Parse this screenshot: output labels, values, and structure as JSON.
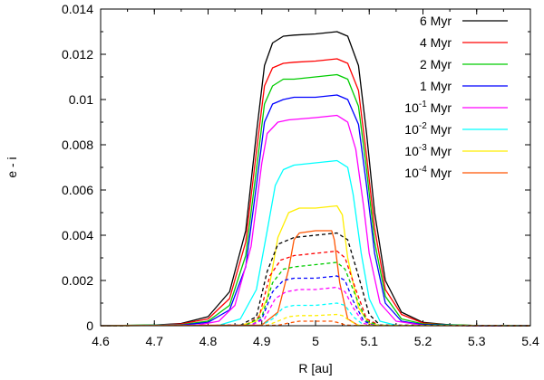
{
  "chart_data": {
    "type": "line",
    "xlabel": "R [au]",
    "ylabel": "e - i",
    "xlim": [
      4.6,
      5.4
    ],
    "ylim": [
      0,
      0.014
    ],
    "grid": false,
    "legend_position": "top-right",
    "xticks": [
      {
        "value": 4.6,
        "label": "4.6"
      },
      {
        "value": 4.7,
        "label": "4.7"
      },
      {
        "value": 4.8,
        "label": "4.8"
      },
      {
        "value": 4.9,
        "label": "4.9"
      },
      {
        "value": 5.0,
        "label": "5"
      },
      {
        "value": 5.1,
        "label": "5.1"
      },
      {
        "value": 5.2,
        "label": "5.2"
      },
      {
        "value": 5.3,
        "label": "5.3"
      },
      {
        "value": 5.4,
        "label": "5.4"
      }
    ],
    "yticks": [
      {
        "value": 0,
        "label": "0"
      },
      {
        "value": 0.002,
        "label": "0.002"
      },
      {
        "value": 0.004,
        "label": "0.004"
      },
      {
        "value": 0.006,
        "label": "0.006"
      },
      {
        "value": 0.008,
        "label": "0.008"
      },
      {
        "value": 0.01,
        "label": "0.01"
      },
      {
        "value": 0.012,
        "label": "0.012"
      },
      {
        "value": 0.014,
        "label": "0.014"
      }
    ],
    "series": [
      {
        "name": "6 Myr",
        "label_base": "6 Myr",
        "color": "#000000",
        "style": "solid",
        "x": [
          4.6,
          4.7,
          4.75,
          4.8,
          4.84,
          4.87,
          4.89,
          4.905,
          4.92,
          4.94,
          4.96,
          5.0,
          5.04,
          5.06,
          5.08,
          5.095,
          5.11,
          5.13,
          5.16,
          5.2,
          5.25,
          5.3,
          5.4
        ],
        "y": [
          0,
          3e-05,
          0.0001,
          0.0004,
          0.0015,
          0.0042,
          0.0085,
          0.0115,
          0.0125,
          0.0128,
          0.01285,
          0.0129,
          0.013,
          0.0128,
          0.0115,
          0.0085,
          0.005,
          0.002,
          0.0006,
          0.00015,
          4e-05,
          1e-05,
          0
        ]
      },
      {
        "name": "4 Myr",
        "label_base": "4 Myr",
        "color": "#ff0000",
        "style": "solid",
        "x": [
          4.6,
          4.7,
          4.75,
          4.8,
          4.84,
          4.87,
          4.89,
          4.905,
          4.92,
          4.94,
          4.96,
          5.0,
          5.04,
          5.06,
          5.08,
          5.095,
          5.11,
          5.13,
          5.16,
          5.2,
          5.25,
          5.3,
          5.4
        ],
        "y": [
          0,
          2e-05,
          8e-05,
          0.0003,
          0.0012,
          0.0037,
          0.0077,
          0.0106,
          0.0114,
          0.0116,
          0.01165,
          0.0117,
          0.0118,
          0.0116,
          0.0104,
          0.0075,
          0.0043,
          0.0016,
          0.0005,
          0.00012,
          3e-05,
          1e-05,
          0
        ]
      },
      {
        "name": "2 Myr",
        "label_base": "2 Myr",
        "color": "#00cc00",
        "style": "solid",
        "x": [
          4.6,
          4.75,
          4.8,
          4.84,
          4.87,
          4.89,
          4.905,
          4.92,
          4.94,
          4.96,
          5.0,
          5.04,
          5.06,
          5.08,
          5.095,
          5.11,
          5.13,
          5.16,
          5.2,
          5.3,
          5.4
        ],
        "y": [
          0,
          5e-05,
          0.0002,
          0.0009,
          0.0031,
          0.0069,
          0.0098,
          0.0106,
          0.0109,
          0.0109,
          0.011,
          0.0111,
          0.0109,
          0.0097,
          0.0069,
          0.0037,
          0.0013,
          0.0003,
          8e-05,
          1e-05,
          0
        ]
      },
      {
        "name": "1 Myr",
        "label_base": "1 Myr",
        "color": "#0000ff",
        "style": "solid",
        "x": [
          4.6,
          4.75,
          4.8,
          4.84,
          4.87,
          4.89,
          4.905,
          4.92,
          4.94,
          4.96,
          5.0,
          5.04,
          5.06,
          5.08,
          5.095,
          5.11,
          5.13,
          5.16,
          5.2,
          5.3,
          5.4
        ],
        "y": [
          0,
          3e-05,
          0.00015,
          0.0007,
          0.0026,
          0.0062,
          0.009,
          0.0098,
          0.01,
          0.0101,
          0.0101,
          0.0102,
          0.01,
          0.0089,
          0.0062,
          0.0032,
          0.001,
          0.0002,
          5e-05,
          0,
          0
        ]
      },
      {
        "name": "10^-1 Myr",
        "label_base": "10",
        "label_exp": "-1",
        "label_unit": " Myr",
        "color": "#ff00ff",
        "style": "solid",
        "x": [
          4.6,
          4.78,
          4.82,
          4.85,
          4.88,
          4.9,
          4.91,
          4.93,
          4.95,
          5.0,
          5.04,
          5.06,
          5.075,
          5.09,
          5.1,
          5.12,
          5.15,
          5.2,
          5.4
        ],
        "y": [
          0,
          3e-05,
          0.0002,
          0.0009,
          0.0035,
          0.0072,
          0.0085,
          0.009,
          0.0091,
          0.0092,
          0.0093,
          0.009,
          0.0078,
          0.0052,
          0.0032,
          0.001,
          0.0002,
          2e-05,
          0
        ]
      },
      {
        "name": "10^-2 Myr",
        "label_base": "10",
        "label_exp": "-2",
        "label_unit": " Myr",
        "color": "#00ffff",
        "style": "solid",
        "x": [
          4.6,
          4.82,
          4.86,
          4.89,
          4.91,
          4.925,
          4.94,
          4.96,
          5.0,
          5.04,
          5.06,
          5.07,
          5.085,
          5.1,
          5.12,
          5.15,
          5.4
        ],
        "y": [
          0,
          2e-05,
          0.0003,
          0.0016,
          0.0042,
          0.0062,
          0.0069,
          0.0071,
          0.0072,
          0.0073,
          0.007,
          0.0058,
          0.0032,
          0.0012,
          0.0002,
          2e-05,
          0
        ]
      },
      {
        "name": "10^-3 Myr",
        "label_base": "10",
        "label_exp": "-3",
        "label_unit": " Myr",
        "color": "#ffee00",
        "style": "solid",
        "x": [
          4.6,
          4.86,
          4.89,
          4.91,
          4.93,
          4.95,
          4.97,
          5.0,
          5.04,
          5.05,
          5.06,
          5.08,
          5.1,
          5.12,
          5.4
        ],
        "y": [
          0,
          2e-05,
          0.0002,
          0.0012,
          0.0039,
          0.005,
          0.0052,
          0.0052,
          0.0053,
          0.0049,
          0.003,
          0.0008,
          0.0001,
          1e-05,
          0
        ]
      },
      {
        "name": "10^-4 Myr",
        "label_base": "10",
        "label_exp": "-4",
        "label_unit": " Myr",
        "color": "#ff5500",
        "style": "solid",
        "x": [
          4.6,
          4.9,
          4.93,
          4.95,
          4.96,
          4.97,
          5.0,
          5.03,
          5.035,
          5.045,
          5.06,
          5.08,
          5.4
        ],
        "y": [
          0,
          3e-05,
          0.0006,
          0.0025,
          0.0038,
          0.0041,
          0.0042,
          0.0042,
          0.0038,
          0.0019,
          0.0003,
          1e-05,
          0
        ]
      },
      {
        "name": "6 Myr (dashed)",
        "color": "#000000",
        "style": "dashed",
        "x": [
          4.6,
          4.86,
          4.89,
          4.91,
          4.93,
          4.96,
          5.0,
          5.04,
          5.06,
          5.08,
          5.1,
          5.12,
          5.4
        ],
        "y": [
          0,
          2e-05,
          0.0004,
          0.0024,
          0.0036,
          0.0039,
          0.004,
          0.0041,
          0.0038,
          0.0022,
          0.0005,
          3e-05,
          0
        ]
      },
      {
        "name": "4 Myr (dashed)",
        "color": "#ff0000",
        "style": "dashed",
        "x": [
          4.6,
          4.87,
          4.895,
          4.915,
          4.935,
          4.96,
          5.0,
          5.04,
          5.055,
          5.075,
          5.095,
          5.12,
          5.4
        ],
        "y": [
          0,
          2e-05,
          0.0004,
          0.0022,
          0.0029,
          0.0031,
          0.0032,
          0.0033,
          0.003,
          0.0016,
          0.0003,
          1e-05,
          0
        ]
      },
      {
        "name": "2 Myr (dashed)",
        "color": "#00cc00",
        "style": "dashed",
        "x": [
          4.6,
          4.87,
          4.9,
          4.92,
          4.94,
          4.96,
          5.0,
          5.04,
          5.055,
          5.075,
          5.095,
          5.12,
          5.4
        ],
        "y": [
          0,
          2e-05,
          0.0004,
          0.0019,
          0.0025,
          0.0026,
          0.0027,
          0.0028,
          0.0025,
          0.0013,
          0.0002,
          1e-05,
          0
        ]
      },
      {
        "name": "1 Myr (dashed)",
        "color": "#0000ff",
        "style": "dashed",
        "x": [
          4.6,
          4.88,
          4.9,
          4.92,
          4.94,
          4.96,
          5.0,
          5.04,
          5.055,
          5.07,
          5.09,
          5.11,
          5.4
        ],
        "y": [
          0,
          2e-05,
          0.0003,
          0.0015,
          0.002,
          0.0021,
          0.0021,
          0.0022,
          0.002,
          0.0011,
          0.0002,
          1e-05,
          0
        ]
      },
      {
        "name": "10^-1 Myr (dashed)",
        "color": "#ff00ff",
        "style": "dashed",
        "x": [
          4.6,
          4.88,
          4.905,
          4.925,
          4.945,
          4.97,
          5.0,
          5.04,
          5.055,
          5.07,
          5.09,
          5.11,
          5.4
        ],
        "y": [
          0,
          2e-05,
          0.0003,
          0.0012,
          0.0015,
          0.0016,
          0.0016,
          0.0017,
          0.0015,
          0.0008,
          0.0001,
          1e-05,
          0
        ]
      },
      {
        "name": "10^-2 Myr (dashed)",
        "color": "#00ffff",
        "style": "dashed",
        "x": [
          4.6,
          4.9,
          4.92,
          4.94,
          4.96,
          5.0,
          5.04,
          5.055,
          5.07,
          5.09,
          5.4
        ],
        "y": [
          0,
          2e-05,
          0.0003,
          0.0008,
          0.0009,
          0.0009,
          0.001,
          0.0009,
          0.0004,
          2e-05,
          0
        ]
      },
      {
        "name": "10^-3 Myr (dashed)",
        "color": "#ffee00",
        "style": "dashed",
        "x": [
          4.6,
          4.91,
          4.93,
          4.95,
          4.97,
          5.0,
          5.04,
          5.05,
          5.065,
          5.08,
          5.4
        ],
        "y": [
          0,
          2e-05,
          0.0002,
          0.0004,
          0.00045,
          0.00045,
          0.0005,
          0.00045,
          0.0002,
          2e-05,
          0
        ]
      },
      {
        "name": "10^-4 Myr (dashed)",
        "color": "#ff5500",
        "style": "dashed",
        "x": [
          4.6,
          4.93,
          4.95,
          4.97,
          5.0,
          5.03,
          5.04,
          5.055,
          5.07,
          5.4
        ],
        "y": [
          0,
          2e-05,
          0.00012,
          0.0002,
          0.0002,
          0.0002,
          0.00015,
          4e-05,
          1e-05,
          0
        ]
      }
    ]
  }
}
